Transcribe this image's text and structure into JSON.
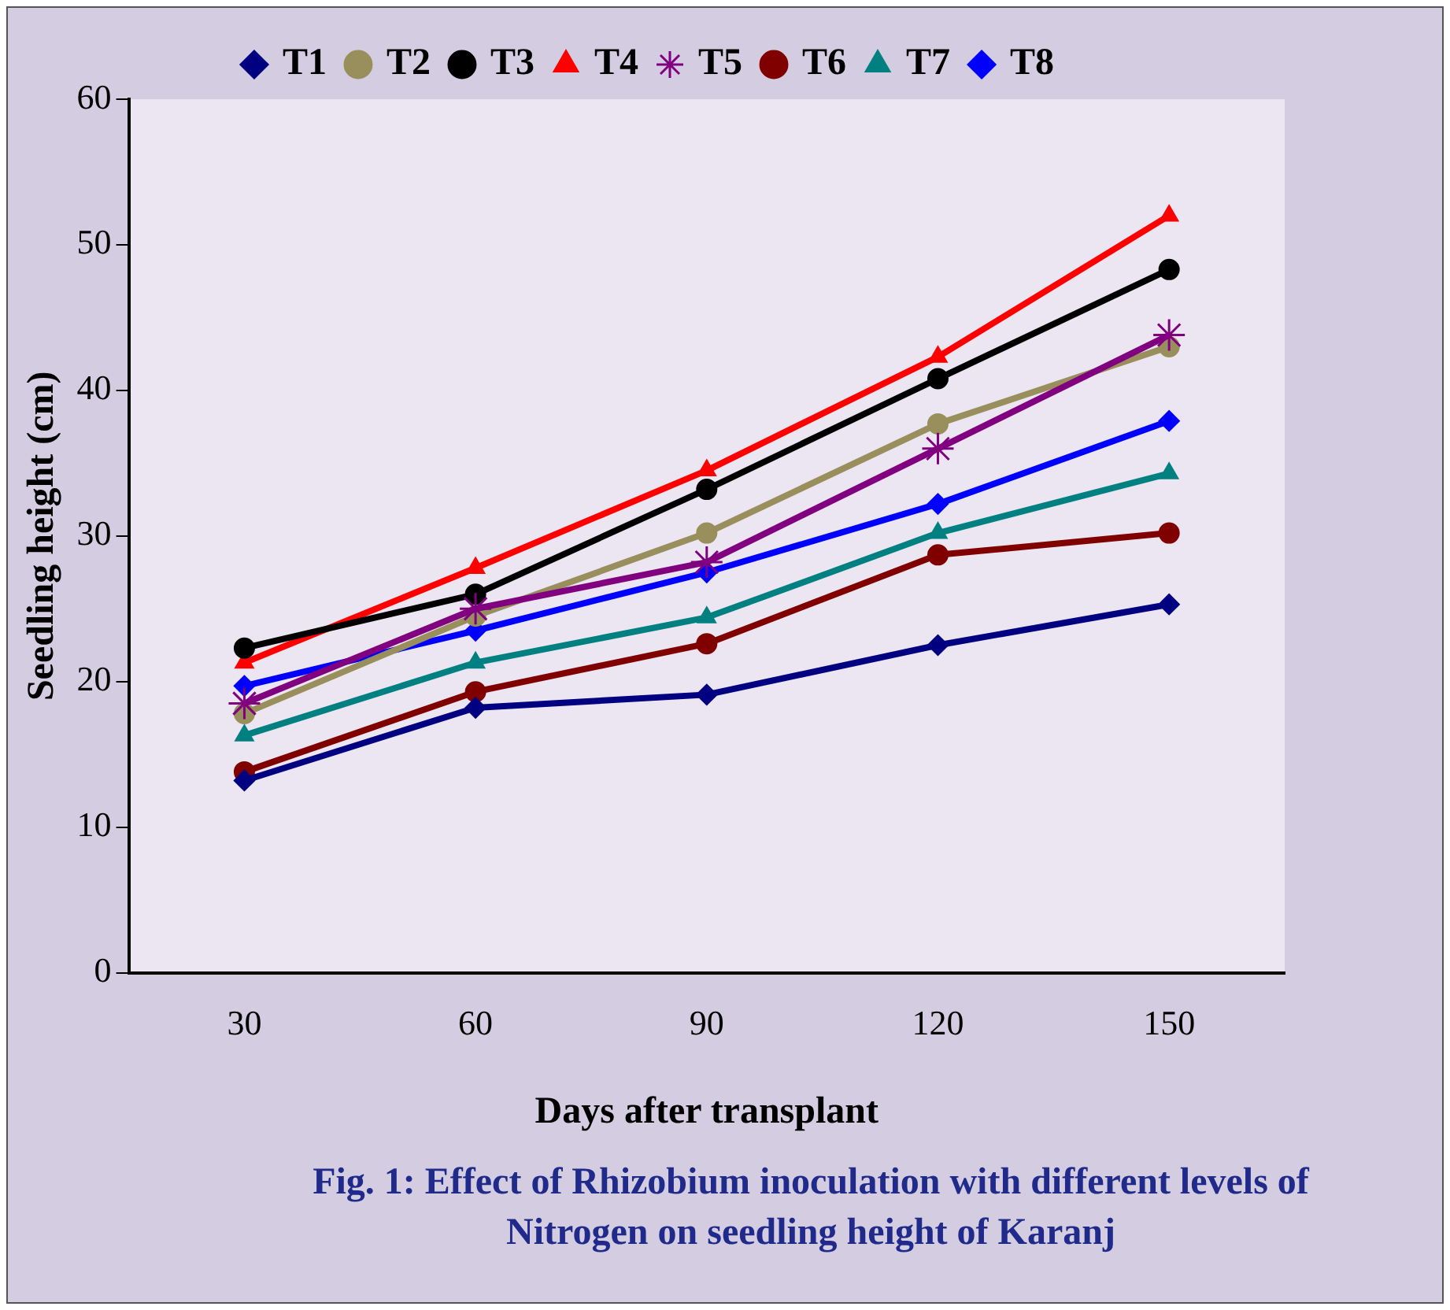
{
  "chart_data": {
    "type": "line",
    "title": "Fig. 1:  Effect of Rhizobium inoculation with different levels of Nitrogen on seedling height of Karanj",
    "xlabel": "Days after transplant",
    "ylabel": "Seedling height (cm)",
    "categories": [
      "30",
      "60",
      "90",
      "120",
      "150"
    ],
    "series": [
      {
        "name": "T1",
        "color": "#000080",
        "marker": "diamond",
        "values": [
          13.2,
          18.2,
          19.1,
          22.5,
          25.3
        ]
      },
      {
        "name": "T2",
        "color": "#998f5c",
        "marker": "circle",
        "values": [
          17.8,
          24.5,
          30.2,
          37.7,
          43.0
        ]
      },
      {
        "name": "T3",
        "color": "#000000",
        "marker": "circle",
        "values": [
          22.3,
          26.0,
          33.2,
          40.8,
          48.3
        ]
      },
      {
        "name": "T4",
        "color": "#ff0000",
        "marker": "triangle",
        "values": [
          21.3,
          27.8,
          34.5,
          42.3,
          52.0
        ]
      },
      {
        "name": "T5",
        "color": "#800080",
        "marker": "cross",
        "values": [
          18.5,
          25.0,
          28.2,
          36.0,
          43.8
        ]
      },
      {
        "name": "T6",
        "color": "#800000",
        "marker": "circle",
        "values": [
          13.8,
          19.3,
          22.6,
          28.7,
          30.2
        ]
      },
      {
        "name": "T7",
        "color": "#008080",
        "marker": "triangle",
        "values": [
          16.3,
          21.3,
          24.4,
          30.2,
          34.3
        ]
      },
      {
        "name": "T8",
        "color": "#0000ff",
        "marker": "diamond",
        "values": [
          19.7,
          23.5,
          27.5,
          32.2,
          37.9
        ]
      }
    ],
    "ylim": [
      0,
      60
    ],
    "yticks": [
      0,
      10,
      20,
      30,
      40,
      50,
      60
    ],
    "grid": false,
    "legend": "top",
    "line_style": "solid"
  }
}
